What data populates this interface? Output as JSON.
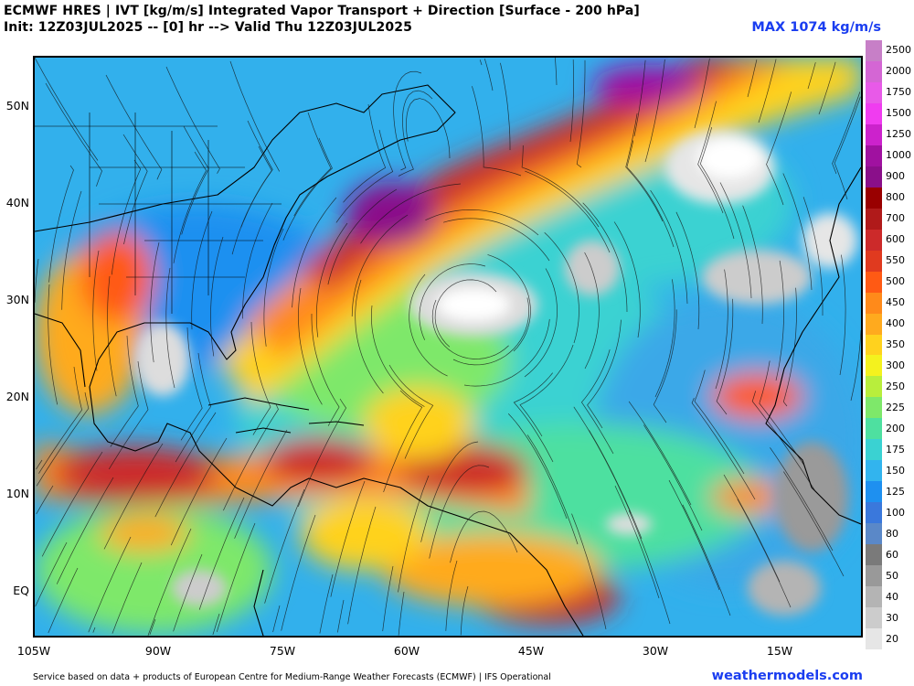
{
  "header": {
    "title": "ECMWF HRES | IVT [kg/m/s] Integrated Vapor Transport + Direction [Surface - 200 hPa]",
    "subtitle": "Init: 12Z03JUL2025 -- [0] hr --> Valid Thu 12Z03JUL2025",
    "max_label": "MAX 1074 kg/m/s"
  },
  "map": {
    "lat_labels": [
      "50N",
      "40N",
      "30N",
      "20N",
      "10N",
      "EQ"
    ],
    "lon_labels": [
      "105W",
      "90W",
      "75W",
      "60W",
      "45W",
      "30W",
      "15W"
    ],
    "extent": {
      "lon_min": -105,
      "lon_max": -5,
      "lat_min": -5,
      "lat_max": 55
    }
  },
  "colorbar": {
    "levels": [
      "2500",
      "2000",
      "1750",
      "1500",
      "1250",
      "1000",
      "900",
      "800",
      "700",
      "600",
      "550",
      "500",
      "450",
      "400",
      "350",
      "300",
      "250",
      "225",
      "200",
      "175",
      "150",
      "125",
      "100",
      "80",
      "60",
      "50",
      "40",
      "30",
      "20"
    ],
    "colors": [
      "#c77fc7",
      "#d466d4",
      "#e85ae8",
      "#f03cf0",
      "#cc22cc",
      "#a011a0",
      "#8a0f8a",
      "#990000",
      "#b01a1a",
      "#cc2a2a",
      "#e03a1f",
      "#ff5a14",
      "#ff8a1a",
      "#ffaa1e",
      "#ffd21e",
      "#f4f21e",
      "#b8ee3c",
      "#7ee86a",
      "#4ee0a0",
      "#3ad2d2",
      "#32b4ee",
      "#1e90f0",
      "#3a78dc",
      "#5a88c8",
      "#7a7a7a",
      "#999999",
      "#b4b4b4",
      "#cccccc",
      "#e6e6e6"
    ]
  },
  "footer": {
    "credit": "Service based on data + products of European Centre for Medium-Range Weather Forecasts (ECMWF) | IFS Operational",
    "site": "weathermodels.com"
  }
}
